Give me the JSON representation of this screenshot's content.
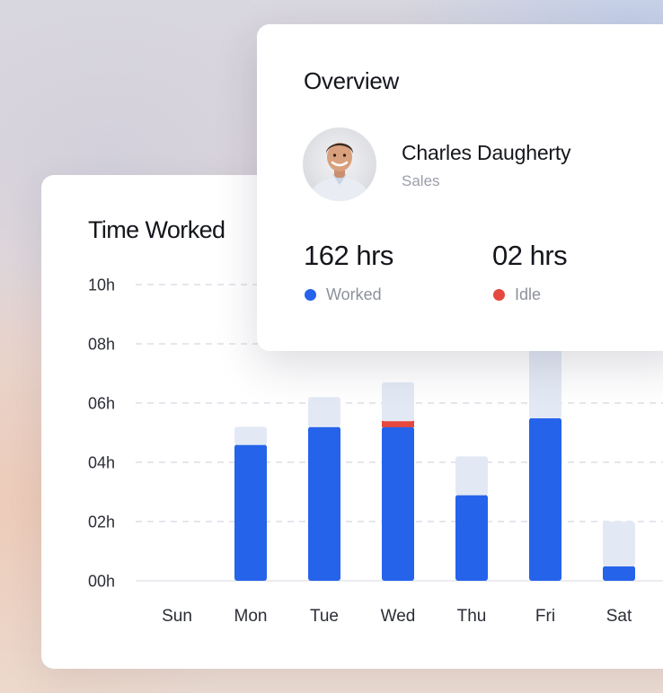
{
  "overview": {
    "title": "Overview",
    "user": {
      "name": "Charles Daugherty",
      "role": "Sales"
    },
    "stats": [
      {
        "value": "162 hrs",
        "label": "Worked",
        "color": "#2563eb"
      },
      {
        "value": "02 hrs",
        "label": "Idle",
        "color": "#e5483f"
      }
    ]
  },
  "time_worked": {
    "title": "Time Worked"
  },
  "chart_data": {
    "type": "bar",
    "title": "Time Worked",
    "categories": [
      "Sun",
      "Mon",
      "Tue",
      "Wed",
      "Thu",
      "Fri",
      "Sat"
    ],
    "y_tick_labels": [
      "00h",
      "02h",
      "04h",
      "06h",
      "08h",
      "10h"
    ],
    "ylim": [
      0,
      10
    ],
    "stacked": true,
    "series": [
      {
        "name": "Worked",
        "color": "#2563eb",
        "values": [
          0,
          4.6,
          5.2,
          5.2,
          2.9,
          5.5,
          0.5
        ]
      },
      {
        "name": "Idle",
        "color": "#e5483f",
        "values": [
          0,
          0,
          0,
          0.2,
          0,
          0,
          0
        ]
      },
      {
        "color": "#e3e9f4",
        "values": [
          0,
          0.6,
          1.0,
          1.3,
          1.3,
          2.5,
          1.5
        ]
      }
    ],
    "grid": true
  }
}
